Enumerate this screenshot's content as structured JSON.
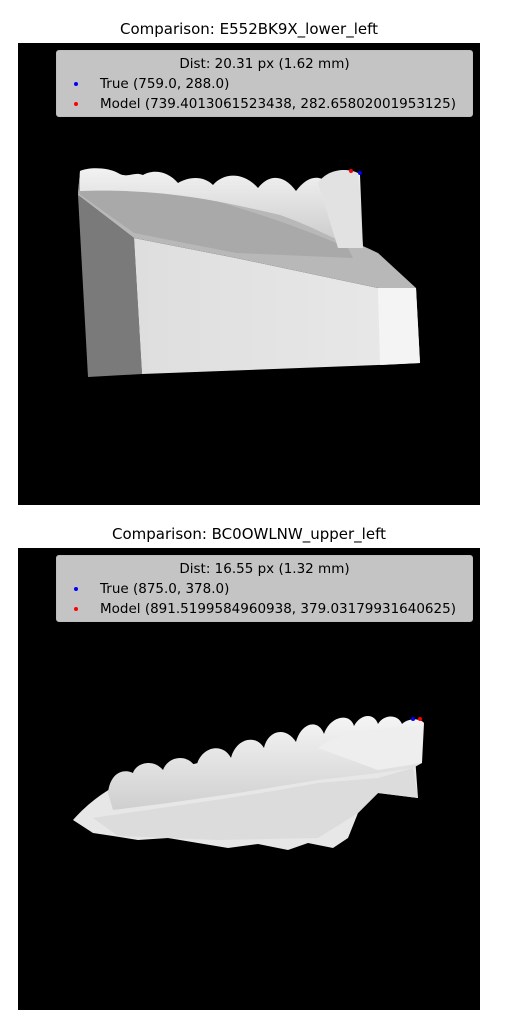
{
  "chart_data": [
    {
      "type": "scatter",
      "title": "Comparison: E552BK9X_lower_left",
      "legend_title": "Dist: 20.31 px (1.62 mm)",
      "legend_position": "top",
      "series": [
        {
          "name": "True (759.0, 288.0)",
          "color": "#0000ff",
          "x": [
            759.0
          ],
          "y": [
            288.0
          ]
        },
        {
          "name": "Model (739.4013061523438, 282.65802001953125)",
          "color": "#ff0000",
          "x": [
            739.4013061523438
          ],
          "y": [
            282.65802001953125
          ]
        }
      ],
      "background_image": "rendered lower dental scan on black background",
      "grid": false,
      "axes_visible": false
    },
    {
      "type": "scatter",
      "title": "Comparison: BC0OWLNW_upper_left",
      "legend_title": "Dist: 16.55 px (1.32 mm)",
      "legend_position": "top",
      "series": [
        {
          "name": "True (875.0, 378.0)",
          "color": "#0000ff",
          "x": [
            875.0
          ],
          "y": [
            378.0
          ]
        },
        {
          "name": "Model (891.5199584960938, 379.03179931640625)",
          "color": "#ff0000",
          "x": [
            891.5199584960938
          ],
          "y": [
            379.03179931640625
          ]
        }
      ],
      "background_image": "rendered upper dental scan on black background",
      "grid": false,
      "axes_visible": false
    }
  ]
}
